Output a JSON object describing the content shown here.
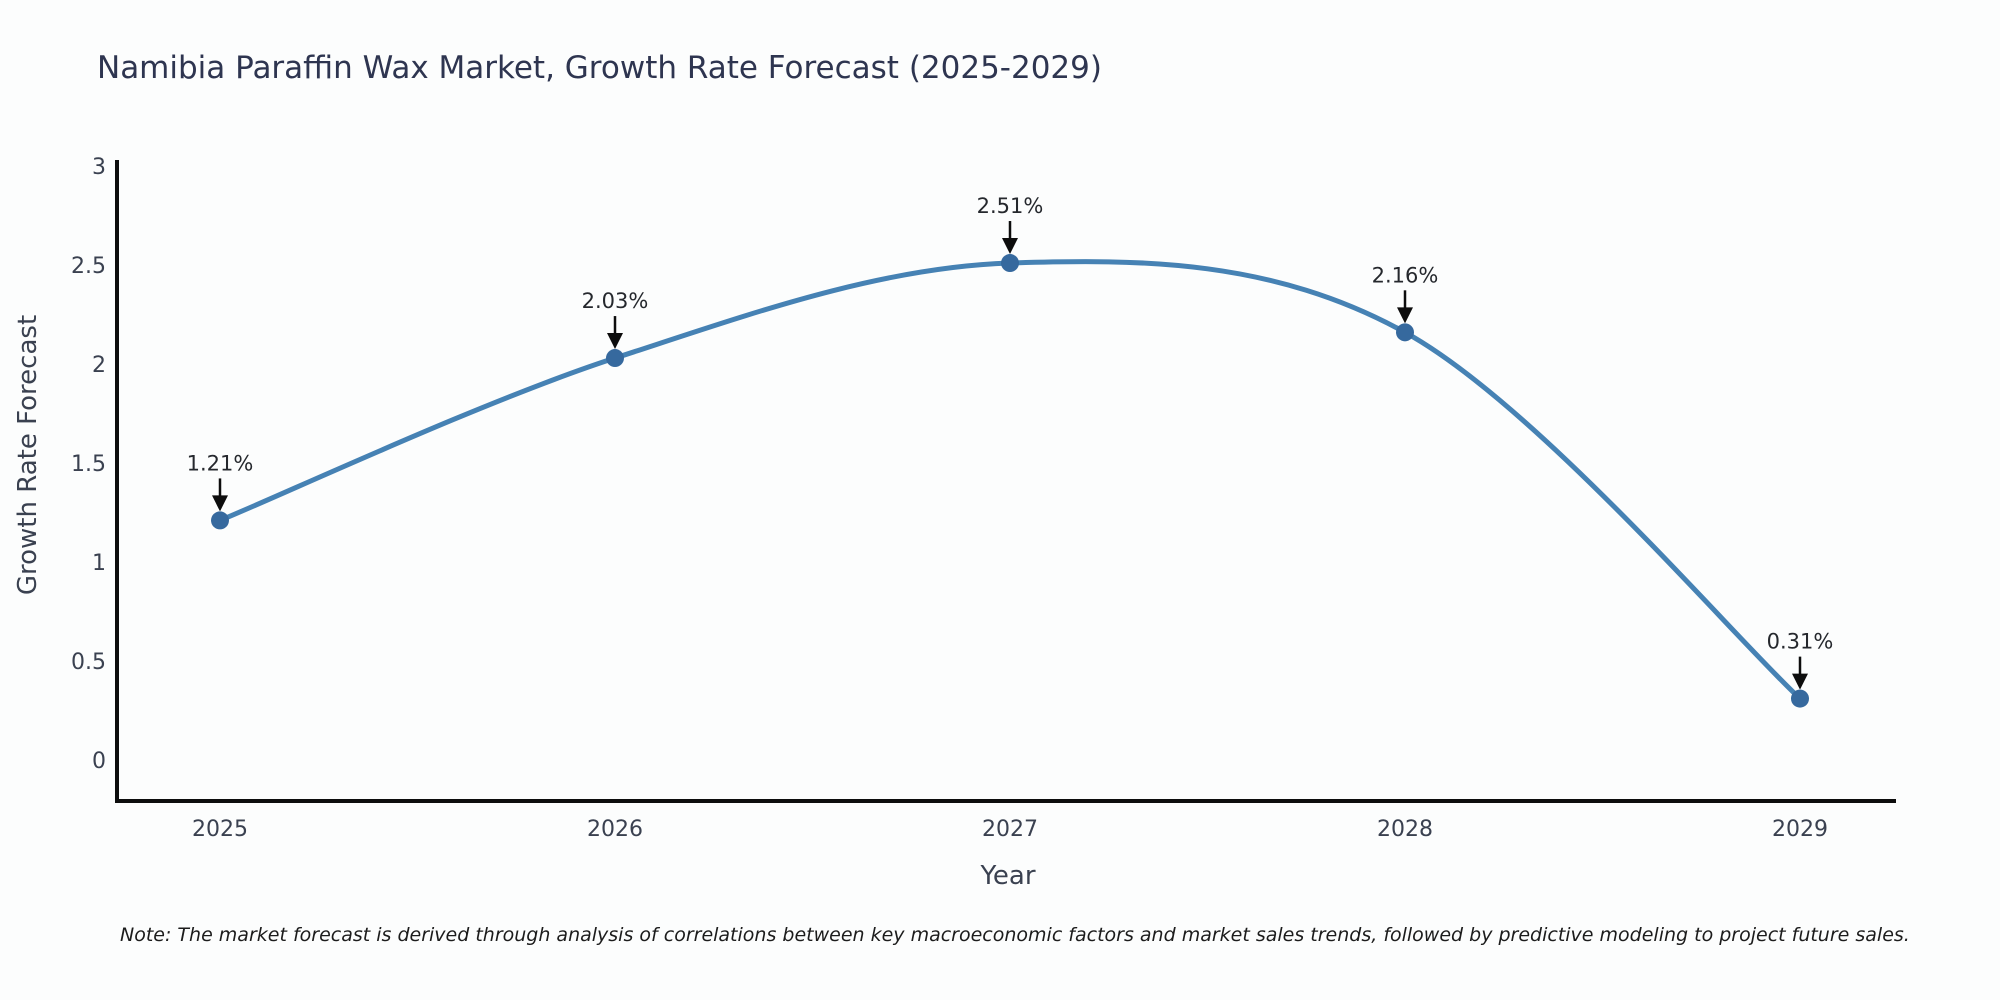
{
  "chart_data": {
    "type": "line",
    "title": "Namibia Paraffin Wax Market, Growth Rate Forecast (2025-2029)",
    "xlabel": "Year",
    "ylabel": "Growth Rate Forecast",
    "categories": [
      "2025",
      "2026",
      "2027",
      "2028",
      "2029"
    ],
    "series": [
      {
        "name": "Growth Rate Forecast",
        "values": [
          1.21,
          2.03,
          2.51,
          2.16,
          0.31
        ],
        "point_labels": [
          "1.21%",
          "2.03%",
          "2.51%",
          "2.16%",
          "0.31%"
        ]
      }
    ],
    "ylim": [
      0,
      3
    ],
    "yticks": [
      0,
      0.5,
      1,
      1.5,
      2,
      2.5,
      3
    ],
    "ytick_labels": [
      "0",
      "0.5",
      "1",
      "1.5",
      "2",
      "2.5",
      "3"
    ],
    "grid": false,
    "legend": "none",
    "line_style": "smooth-spline",
    "annotation_style": "down-arrow",
    "note": "Note: The market forecast is derived through analysis of correlations between key macroeconomic factors and market sales trends, followed by predictive modeling to project future sales.",
    "colors": {
      "line": "#4682b4",
      "marker": "#36699e",
      "arrow": "#0d0d0d",
      "title_text": "#2e3550",
      "axis_text": "#3a4150",
      "annotation_text": "#25282d",
      "note_text": "#1c1c1c",
      "spine": "#0d0d0d",
      "background": "#fcfdfd"
    }
  }
}
